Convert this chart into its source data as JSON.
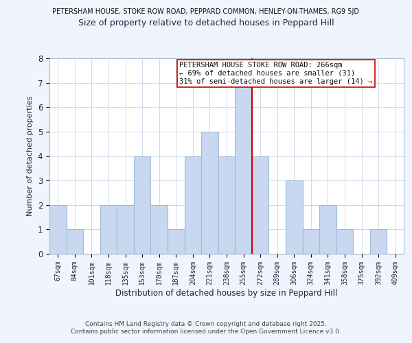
{
  "title_top": "PETERSHAM HOUSE, STOKE ROW ROAD, PEPPARD COMMON, HENLEY-ON-THAMES, RG9 5JD",
  "title_main": "Size of property relative to detached houses in Peppard Hill",
  "xlabel": "Distribution of detached houses by size in Peppard Hill",
  "ylabel": "Number of detached properties",
  "bar_labels": [
    "67sqm",
    "84sqm",
    "101sqm",
    "118sqm",
    "135sqm",
    "153sqm",
    "170sqm",
    "187sqm",
    "204sqm",
    "221sqm",
    "238sqm",
    "255sqm",
    "272sqm",
    "289sqm",
    "306sqm",
    "324sqm",
    "341sqm",
    "358sqm",
    "375sqm",
    "392sqm",
    "409sqm"
  ],
  "bar_values": [
    2,
    1,
    0,
    2,
    2,
    4,
    2,
    1,
    4,
    5,
    4,
    7,
    4,
    0,
    3,
    1,
    2,
    1,
    0,
    1,
    0
  ],
  "bar_color": "#c8d8f0",
  "bar_edge_color": "#a0b8d8",
  "ylim": [
    0,
    8
  ],
  "yticks": [
    0,
    1,
    2,
    3,
    4,
    5,
    6,
    7,
    8
  ],
  "vline_color": "#cc0000",
  "annotation_title": "PETERSHAM HOUSE STOKE ROW ROAD: 266sqm",
  "annotation_line2": "← 69% of detached houses are smaller (31)",
  "annotation_line3": "31% of semi-detached houses are larger (14) →",
  "footer_line1": "Contains HM Land Registry data © Crown copyright and database right 2025.",
  "footer_line2": "Contains public sector information licensed under the Open Government Licence v3.0.",
  "background_color": "#f0f4fc",
  "plot_bg_color": "#ffffff",
  "grid_color": "#d0d8e8"
}
